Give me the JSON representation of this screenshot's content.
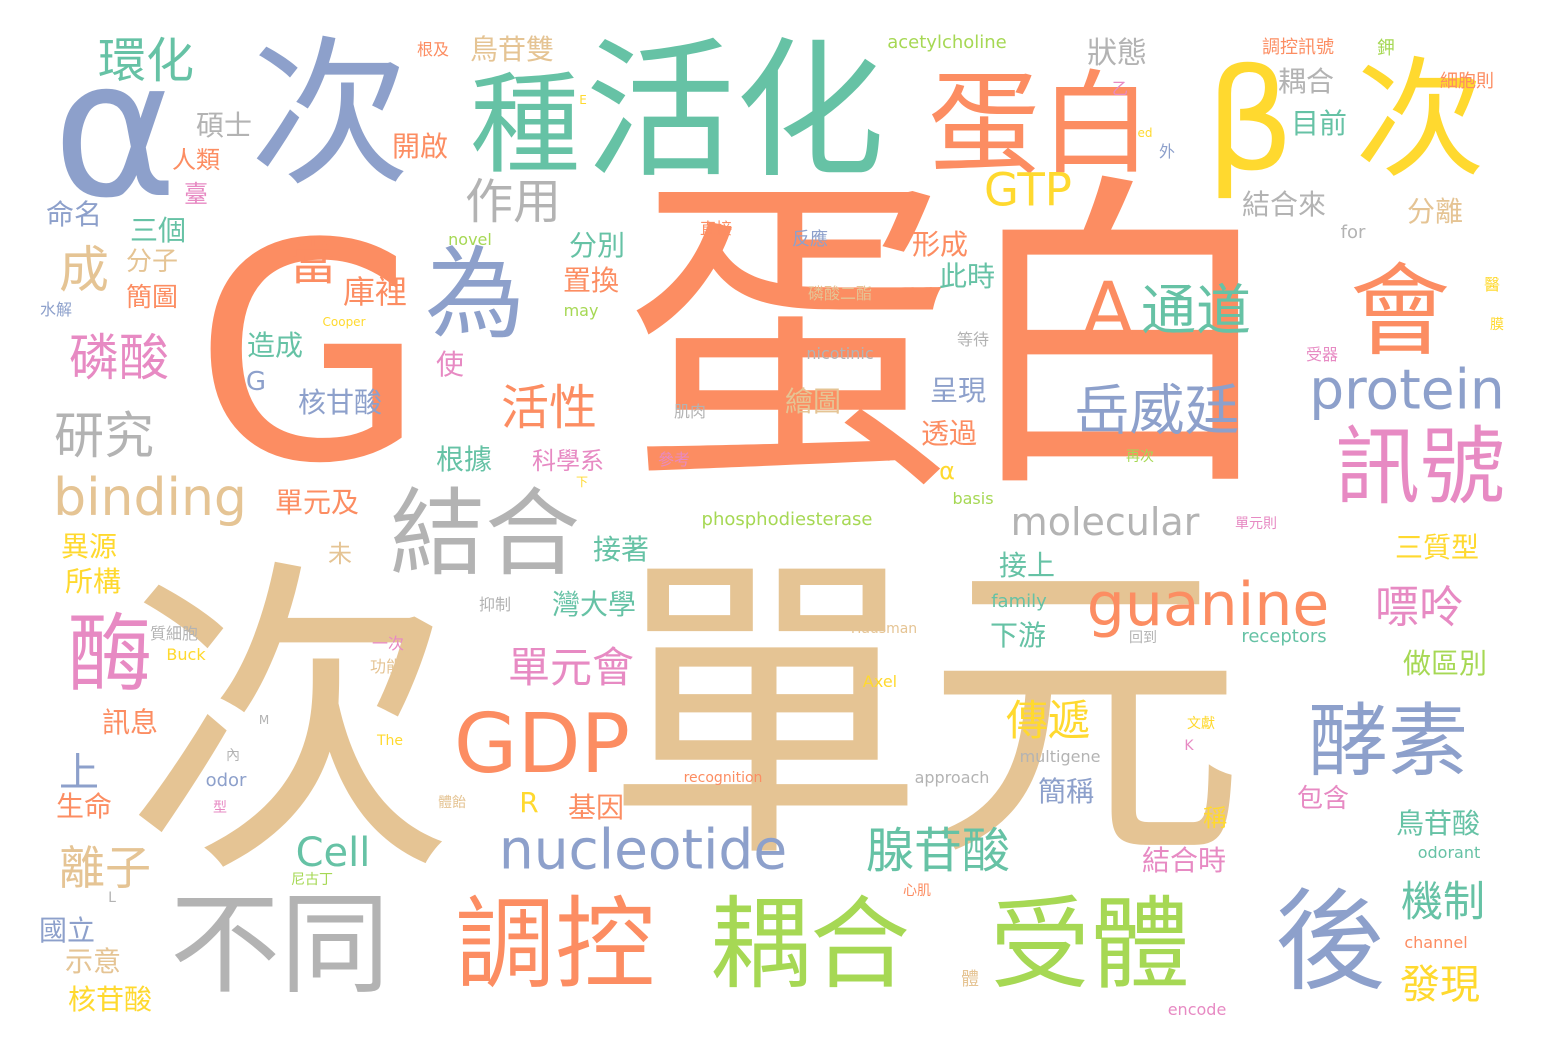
{
  "palette": {
    "orange": "#fc8d62",
    "blue": "#8da0cb",
    "green": "#66c2a5",
    "pink": "#e78ac3",
    "lime": "#a6d854",
    "yellow": "#ffd92f",
    "tan": "#e5c494",
    "gray": "#b3b3b3"
  },
  "words": [
    {
      "text": "G",
      "color": "orange"
    },
    {
      "text": "蛋白",
      "color": "orange"
    },
    {
      "text": "次",
      "color": "tan"
    },
    {
      "text": "單元",
      "color": "tan"
    },
    {
      "text": "α",
      "color": "blue"
    },
    {
      "text": "次",
      "color": "blue"
    },
    {
      "text": "活化",
      "color": "green"
    },
    {
      "text": "β",
      "color": "yellow"
    },
    {
      "text": "次",
      "color": "yellow"
    },
    {
      "text": "種",
      "color": "green"
    },
    {
      "text": "蛋白",
      "color": "orange"
    },
    {
      "text": "為",
      "color": "blue"
    },
    {
      "text": "結合",
      "color": "gray"
    },
    {
      "text": "不同",
      "color": "gray"
    },
    {
      "text": "調控",
      "color": "orange"
    },
    {
      "text": "耦合",
      "color": "lime"
    },
    {
      "text": "受體",
      "color": "lime"
    },
    {
      "text": "後",
      "color": "blue"
    },
    {
      "text": "會",
      "color": "orange"
    },
    {
      "text": "訊號",
      "color": "pink"
    },
    {
      "text": "酵素",
      "color": "blue"
    },
    {
      "text": "酶",
      "color": "pink"
    },
    {
      "text": "GDP",
      "color": "orange"
    },
    {
      "text": "guanine",
      "color": "orange"
    },
    {
      "text": "protein",
      "color": "blue"
    },
    {
      "text": "A",
      "color": "orange"
    },
    {
      "text": "通道",
      "color": "green"
    },
    {
      "text": "岳威廷",
      "color": "blue"
    },
    {
      "text": "nucleotide",
      "color": "blue"
    },
    {
      "text": "binding",
      "color": "tan"
    },
    {
      "text": "molecular",
      "color": "gray"
    },
    {
      "text": "腺苷酸",
      "color": "green"
    },
    {
      "text": "環化",
      "color": "green"
    },
    {
      "text": "作用",
      "color": "gray"
    },
    {
      "text": "GTP",
      "color": "yellow"
    },
    {
      "text": "當",
      "color": "orange"
    },
    {
      "text": "庫裡",
      "color": "orange"
    },
    {
      "text": "磷酸",
      "color": "pink"
    },
    {
      "text": "研究",
      "color": "gray"
    },
    {
      "text": "成",
      "color": "tan"
    },
    {
      "text": "活性",
      "color": "orange"
    },
    {
      "text": "單元會",
      "color": "pink"
    },
    {
      "text": "傳遞",
      "color": "yellow"
    },
    {
      "text": "嘌呤",
      "color": "pink"
    },
    {
      "text": "機制",
      "color": "green"
    },
    {
      "text": "發現",
      "color": "yellow"
    },
    {
      "text": "離子",
      "color": "tan"
    },
    {
      "text": "Cell",
      "color": "green"
    },
    {
      "text": "R",
      "color": "yellow"
    },
    {
      "text": "鳥苷雙",
      "color": "tan"
    },
    {
      "text": "狀態",
      "color": "gray"
    },
    {
      "text": "耦合",
      "color": "gray"
    },
    {
      "text": "目前",
      "color": "green"
    },
    {
      "text": "結合來",
      "color": "gray"
    },
    {
      "text": "分離",
      "color": "tan"
    },
    {
      "text": "碩士",
      "color": "gray"
    },
    {
      "text": "人類",
      "color": "orange"
    },
    {
      "text": "臺",
      "color": "pink"
    },
    {
      "text": "命名",
      "color": "blue"
    },
    {
      "text": "三個",
      "color": "green"
    },
    {
      "text": "分子",
      "color": "tan"
    },
    {
      "text": "簡圖",
      "color": "orange"
    },
    {
      "text": "開啟",
      "color": "orange"
    },
    {
      "text": "分別",
      "color": "green"
    },
    {
      "text": "置換",
      "color": "orange"
    },
    {
      "text": "形成",
      "color": "orange"
    },
    {
      "text": "此時",
      "color": "green"
    },
    {
      "text": "造成",
      "color": "green"
    },
    {
      "text": "使",
      "color": "pink"
    },
    {
      "text": "G",
      "color": "blue"
    },
    {
      "text": "核甘酸",
      "color": "blue"
    },
    {
      "text": "呈現",
      "color": "blue"
    },
    {
      "text": "繪圖",
      "color": "tan"
    },
    {
      "text": "透過",
      "color": "orange"
    },
    {
      "text": "α",
      "color": "yellow"
    },
    {
      "text": "根據",
      "color": "green"
    },
    {
      "text": "科學系",
      "color": "pink"
    },
    {
      "text": "單元及",
      "color": "orange"
    },
    {
      "text": "未",
      "color": "tan"
    },
    {
      "text": "接著",
      "color": "green"
    },
    {
      "text": "灣大學",
      "color": "green"
    },
    {
      "text": "接上",
      "color": "green"
    },
    {
      "text": "下游",
      "color": "green"
    },
    {
      "text": "三質型",
      "color": "yellow"
    },
    {
      "text": "做區別",
      "color": "lime"
    },
    {
      "text": "鳥苷酸",
      "color": "green"
    },
    {
      "text": "包含",
      "color": "pink"
    },
    {
      "text": "簡稱",
      "color": "blue"
    },
    {
      "text": "稱",
      "color": "yellow"
    },
    {
      "text": "結合時",
      "color": "pink"
    },
    {
      "text": "基因",
      "color": "orange"
    },
    {
      "text": "異源",
      "color": "yellow"
    },
    {
      "text": "所構",
      "color": "yellow"
    },
    {
      "text": "訊息",
      "color": "orange"
    },
    {
      "text": "上",
      "color": "blue"
    },
    {
      "text": "生命",
      "color": "orange"
    },
    {
      "text": "國立",
      "color": "blue"
    },
    {
      "text": "示意",
      "color": "tan"
    },
    {
      "text": "核苷酸",
      "color": "yellow"
    },
    {
      "text": "acetylcholine",
      "color": "lime"
    },
    {
      "text": "調控訊號",
      "color": "orange"
    },
    {
      "text": "鉀",
      "color": "lime"
    },
    {
      "text": "細胞則",
      "color": "orange"
    },
    {
      "text": "根及",
      "color": "orange"
    },
    {
      "text": "乙",
      "color": "pink"
    },
    {
      "text": "E",
      "color": "yellow"
    },
    {
      "text": "ed",
      "color": "yellow"
    },
    {
      "text": "外",
      "color": "blue"
    },
    {
      "text": "novel",
      "color": "lime"
    },
    {
      "text": "直接",
      "color": "orange"
    },
    {
      "text": "反應",
      "color": "blue"
    },
    {
      "text": "for",
      "color": "gray"
    },
    {
      "text": "醫",
      "color": "yellow"
    },
    {
      "text": "水解",
      "color": "blue"
    },
    {
      "text": "Cooper",
      "color": "yellow"
    },
    {
      "text": "may",
      "color": "lime"
    },
    {
      "text": "磷酸二酯",
      "color": "tan"
    },
    {
      "text": "等待",
      "color": "gray"
    },
    {
      "text": "膜",
      "color": "yellow"
    },
    {
      "text": "nicotinic",
      "color": "gray"
    },
    {
      "text": "受器",
      "color": "pink"
    },
    {
      "text": "肌肉",
      "color": "gray"
    },
    {
      "text": "參考",
      "color": "pink"
    },
    {
      "text": "再次",
      "color": "lime"
    },
    {
      "text": "下",
      "color": "yellow"
    },
    {
      "text": "basis",
      "color": "lime"
    },
    {
      "text": "phosphodiesterase",
      "color": "lime"
    },
    {
      "text": "單元則",
      "color": "pink"
    },
    {
      "text": "family",
      "color": "green"
    },
    {
      "text": "抑制",
      "color": "gray"
    },
    {
      "text": "質細胞",
      "color": "gray"
    },
    {
      "text": "Hausman",
      "color": "tan"
    },
    {
      "text": "receptors",
      "color": "green"
    },
    {
      "text": "一次",
      "color": "pink"
    },
    {
      "text": "回到",
      "color": "gray"
    },
    {
      "text": "功能",
      "color": "tan"
    },
    {
      "text": "Buck",
      "color": "yellow"
    },
    {
      "text": "Axel",
      "color": "yellow"
    },
    {
      "text": "M",
      "color": "gray"
    },
    {
      "text": "文獻",
      "color": "yellow"
    },
    {
      "text": "內",
      "color": "gray"
    },
    {
      "text": "The",
      "color": "yellow"
    },
    {
      "text": "multigene",
      "color": "gray"
    },
    {
      "text": "K",
      "color": "pink"
    },
    {
      "text": "odor",
      "color": "blue"
    },
    {
      "text": "型",
      "color": "pink"
    },
    {
      "text": "recognition",
      "color": "orange"
    },
    {
      "text": "approach",
      "color": "gray"
    },
    {
      "text": "體飴",
      "color": "tan"
    },
    {
      "text": "odorant",
      "color": "green"
    },
    {
      "text": "尼古丁",
      "color": "lime"
    },
    {
      "text": "L",
      "color": "gray"
    },
    {
      "text": "心肌",
      "color": "orange"
    },
    {
      "text": "channel",
      "color": "orange"
    },
    {
      "text": "體",
      "color": "tan"
    },
    {
      "text": "encode",
      "color": "pink"
    }
  ]
}
